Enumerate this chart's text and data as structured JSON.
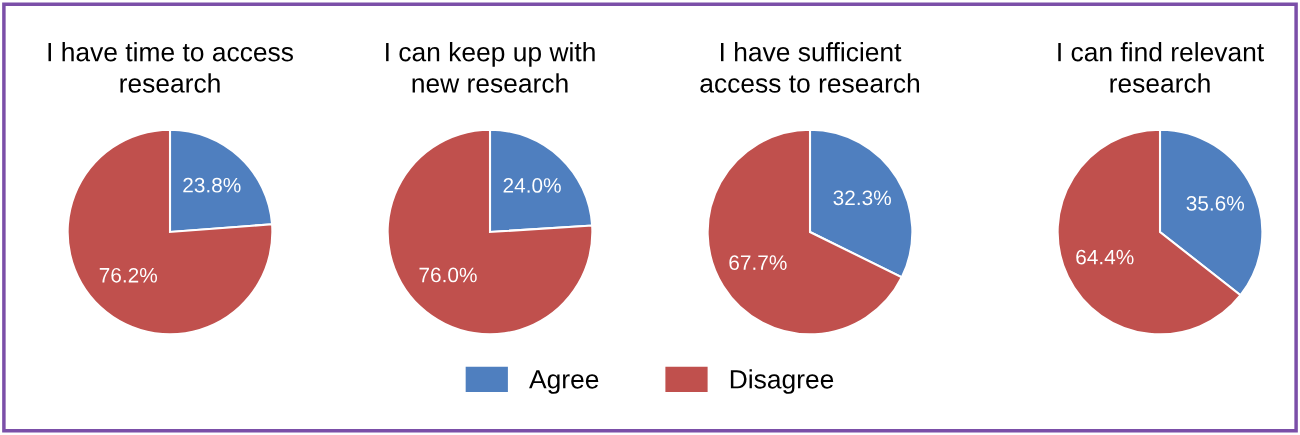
{
  "chart_data": [
    {
      "type": "pie",
      "title": "I have time to access\nresearch",
      "categories": [
        "Agree",
        "Disagree"
      ],
      "values": [
        23.8,
        76.2
      ],
      "value_labels": [
        "23.8%",
        "76.2%"
      ],
      "colors": [
        "#4f7fbf",
        "#c0504d"
      ],
      "legend": "bottom"
    },
    {
      "type": "pie",
      "title": "I can keep up with\nnew research",
      "categories": [
        null,
        null
      ],
      "values": [
        24.0,
        76.0
      ],
      "value_labels": [
        "24.0%",
        "76.0%"
      ],
      "colors": [
        "#4f7fbf",
        "#c0504d"
      ]
    },
    {
      "type": "pie",
      "title": "I have sufficient\naccess to research",
      "categories": [
        null,
        null
      ],
      "values": [
        32.3,
        67.7
      ],
      "value_labels": [
        "32.3%",
        "67.7%"
      ],
      "colors": [
        "#4f7fbf",
        "#c0504d"
      ]
    },
    {
      "type": "pie",
      "title": "I can find relevant\nresearch",
      "categories": [
        null,
        null
      ],
      "values": [
        35.6,
        64.4
      ],
      "value_labels": [
        "35.6%",
        "64.4%"
      ],
      "colors": [
        "#4f7fbf",
        "#c0504d"
      ]
    }
  ]
}
